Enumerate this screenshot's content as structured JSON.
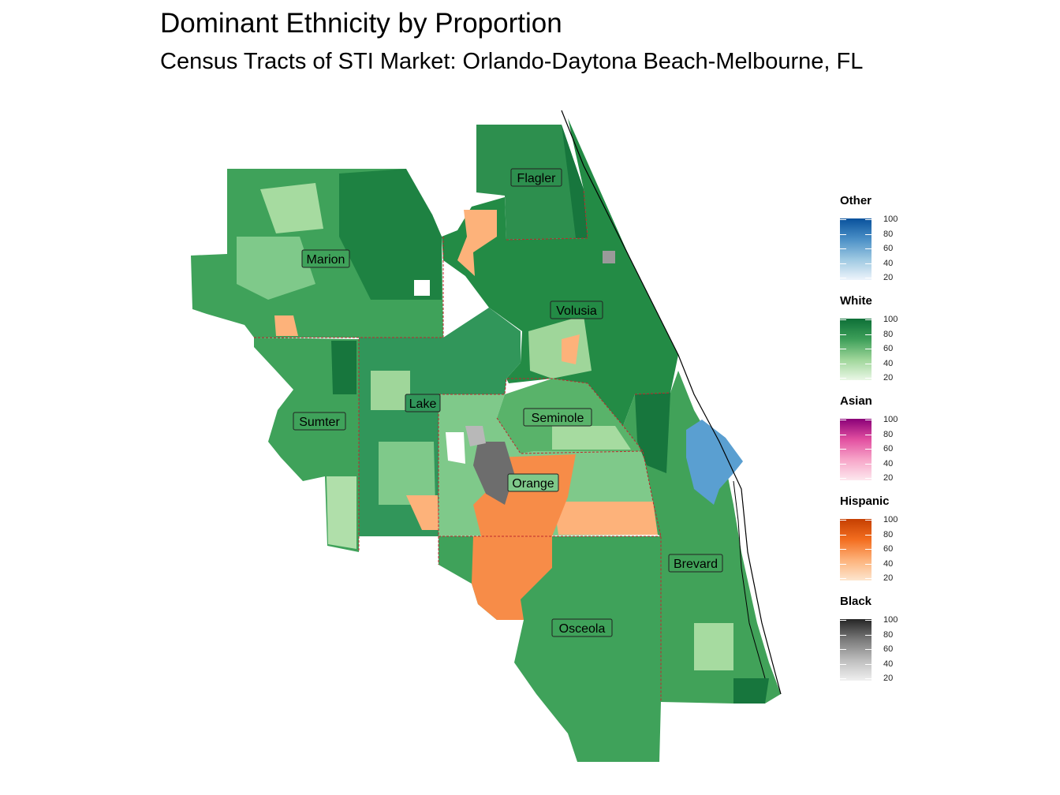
{
  "title": "Dominant Ethnicity by Proportion",
  "subtitle": "Census Tracts of STI Market: Orlando-Daytona Beach-Melbourne, FL",
  "counties": [
    {
      "name": "Flagler"
    },
    {
      "name": "Marion"
    },
    {
      "name": "Volusia"
    },
    {
      "name": "Lake"
    },
    {
      "name": "Seminole"
    },
    {
      "name": "Sumter"
    },
    {
      "name": "Orange"
    },
    {
      "name": "Brevard"
    },
    {
      "name": "Osceola"
    }
  ],
  "legend": [
    {
      "name": "Other",
      "colors": [
        "#eef4fb",
        "#9ec9e2",
        "#4a8fc6",
        "#08519c"
      ],
      "ticks": [
        "100",
        "80",
        "60",
        "40",
        "20"
      ]
    },
    {
      "name": "White",
      "colors": [
        "#eaf7e6",
        "#9fd69a",
        "#3d9f59",
        "#0d6f37"
      ],
      "ticks": [
        "100",
        "80",
        "60",
        "40",
        "20"
      ]
    },
    {
      "name": "Asian",
      "colors": [
        "#fde8ee",
        "#f7a6c9",
        "#e24fa0",
        "#8a0078"
      ],
      "ticks": [
        "100",
        "80",
        "60",
        "40",
        "20"
      ]
    },
    {
      "name": "Hispanic",
      "colors": [
        "#fde6cf",
        "#fdb27a",
        "#f36d1f",
        "#c54002"
      ],
      "ticks": [
        "100",
        "80",
        "60",
        "40",
        "20"
      ]
    },
    {
      "name": "Black",
      "colors": [
        "#f0f0f0",
        "#bdbdbd",
        "#7a7a7a",
        "#262626"
      ],
      "ticks": [
        "100",
        "80",
        "60",
        "40",
        "20"
      ]
    }
  ]
}
